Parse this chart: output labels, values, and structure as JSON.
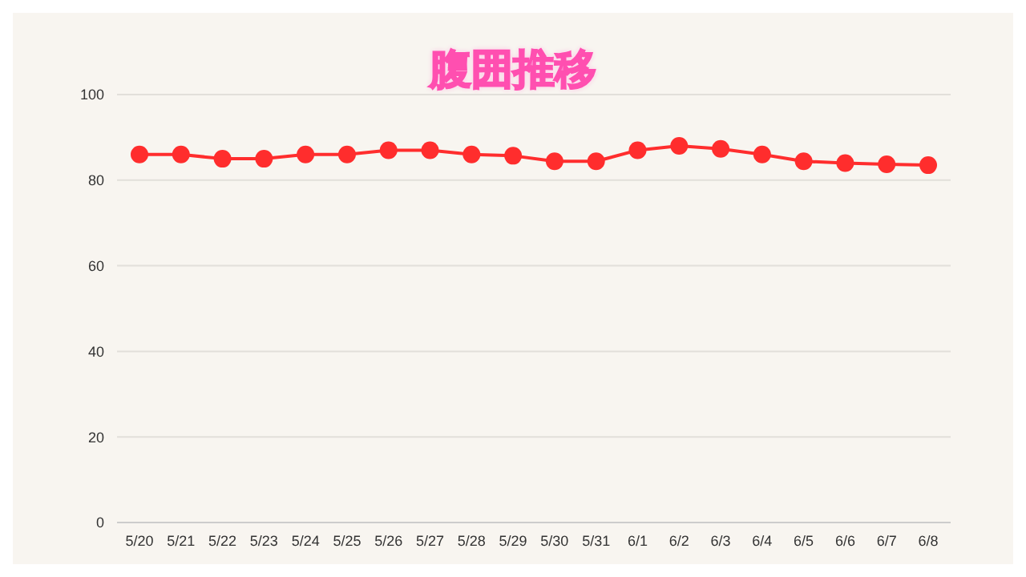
{
  "chart_data": {
    "type": "line",
    "title": "腹囲推移",
    "categories": [
      "5/20",
      "5/21",
      "5/22",
      "5/23",
      "5/24",
      "5/25",
      "5/26",
      "5/27",
      "5/28",
      "5/29",
      "5/30",
      "5/31",
      "6/1",
      "6/2",
      "6/3",
      "6/4",
      "6/5",
      "6/6",
      "6/7",
      "6/8"
    ],
    "series": [
      {
        "color": "#ff2d2d",
        "values": [
          86,
          86,
          85,
          85,
          86,
          86,
          87,
          87,
          86,
          85.7,
          84.4,
          84.4,
          87,
          88,
          87.3,
          86,
          84.4,
          84,
          83.7,
          83.5
        ]
      }
    ],
    "ylim": [
      0,
      100
    ],
    "yticks": [
      0,
      20,
      40,
      60,
      80,
      100
    ],
    "grid": "y",
    "marker": "circle",
    "line_style": "solid"
  }
}
